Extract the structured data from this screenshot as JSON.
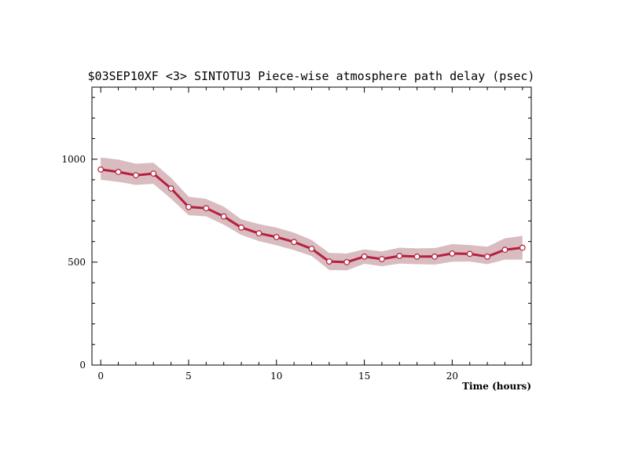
{
  "chart_data": {
    "type": "line",
    "title": "$03SEP10XF <3>  SINTOTU3  Piece-wise atmosphere path delay (psec)",
    "xlabel": "Time (hours)",
    "ylabel": "",
    "xlim": [
      -0.5,
      24.5
    ],
    "ylim": [
      0,
      1350
    ],
    "x_ticks": [
      0,
      5,
      10,
      15,
      20
    ],
    "y_ticks": [
      0,
      500,
      1000
    ],
    "grid": false,
    "colors": {
      "line": "#b5203e",
      "band": "#d9bcc0",
      "marker_fill": "#ffffff"
    },
    "series": [
      {
        "x": [
          0,
          1,
          2,
          3,
          4,
          5,
          6,
          7,
          8,
          9,
          10,
          11,
          12,
          13,
          14,
          15,
          16,
          17,
          18,
          19,
          20,
          21,
          22,
          23,
          24
        ],
        "values": [
          950,
          938,
          922,
          930,
          858,
          768,
          762,
          722,
          668,
          640,
          622,
          598,
          565,
          503,
          500,
          527,
          515,
          530,
          527,
          527,
          542,
          540,
          527,
          560,
          570
        ],
        "band_upper": [
          1008,
          998,
          978,
          983,
          910,
          818,
          807,
          770,
          708,
          685,
          668,
          643,
          608,
          545,
          542,
          562,
          552,
          570,
          567,
          568,
          588,
          583,
          575,
          616,
          628
        ],
        "band_lower": [
          900,
          890,
          875,
          880,
          808,
          728,
          722,
          682,
          632,
          602,
          582,
          558,
          530,
          462,
          460,
          492,
          480,
          493,
          490,
          488,
          502,
          503,
          490,
          512,
          512
        ]
      }
    ]
  }
}
